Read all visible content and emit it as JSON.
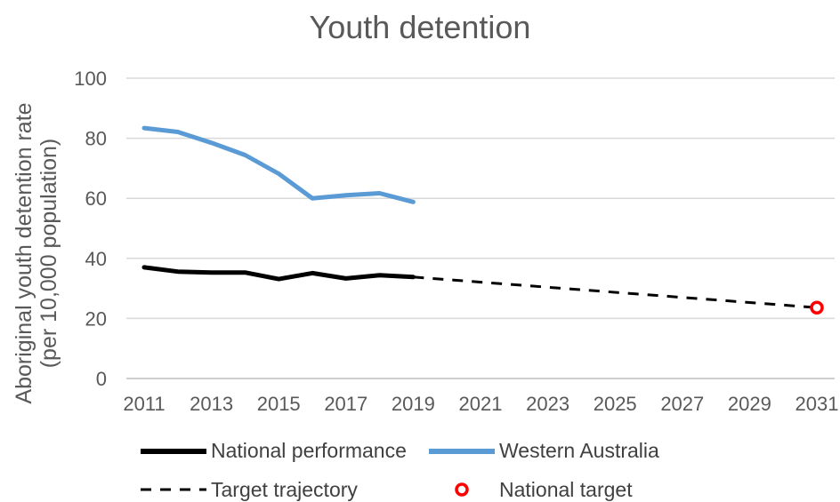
{
  "chart_data": {
    "type": "line",
    "title": "Youth detention",
    "ylabel": "Aboriginal youth detention rate (per 10,000 population)",
    "ylabel_lines": [
      "Aboriginal youth detention rate",
      "(per 10,000 population)"
    ],
    "xlabel": "",
    "xlim": [
      2011,
      2031
    ],
    "ylim": [
      0,
      100
    ],
    "x_ticks": [
      "2011",
      "2013",
      "2015",
      "2017",
      "2019",
      "2021",
      "2023",
      "2025",
      "2027",
      "2029",
      "2031"
    ],
    "y_ticks": [
      "0",
      "20",
      "40",
      "60",
      "80",
      "100"
    ],
    "grid": "horizontal",
    "legend_position": "bottom",
    "series": [
      {
        "name": "National performance",
        "style": "solid",
        "color": "#000000",
        "x": [
          2011,
          2012,
          2013,
          2014,
          2015,
          2016,
          2017,
          2018,
          2019
        ],
        "values": [
          37.0,
          35.6,
          35.3,
          35.3,
          33.1,
          35.1,
          33.3,
          34.4,
          33.8
        ]
      },
      {
        "name": "Western Australia",
        "style": "solid",
        "color": "#5b9bd5",
        "x": [
          2011,
          2012,
          2013,
          2014,
          2015,
          2016,
          2017,
          2018,
          2019
        ],
        "values": [
          83.4,
          82.1,
          78.5,
          74.4,
          68.2,
          60.0,
          61.0,
          61.7,
          58.8
        ]
      },
      {
        "name": "Target trajectory",
        "style": "dashed",
        "color": "#000000",
        "x": [
          2019,
          2031
        ],
        "values": [
          33.8,
          23.6
        ]
      },
      {
        "name": "National target",
        "style": "marker",
        "color": "#ff0000",
        "x": [
          2031
        ],
        "values": [
          23.6
        ]
      }
    ]
  }
}
